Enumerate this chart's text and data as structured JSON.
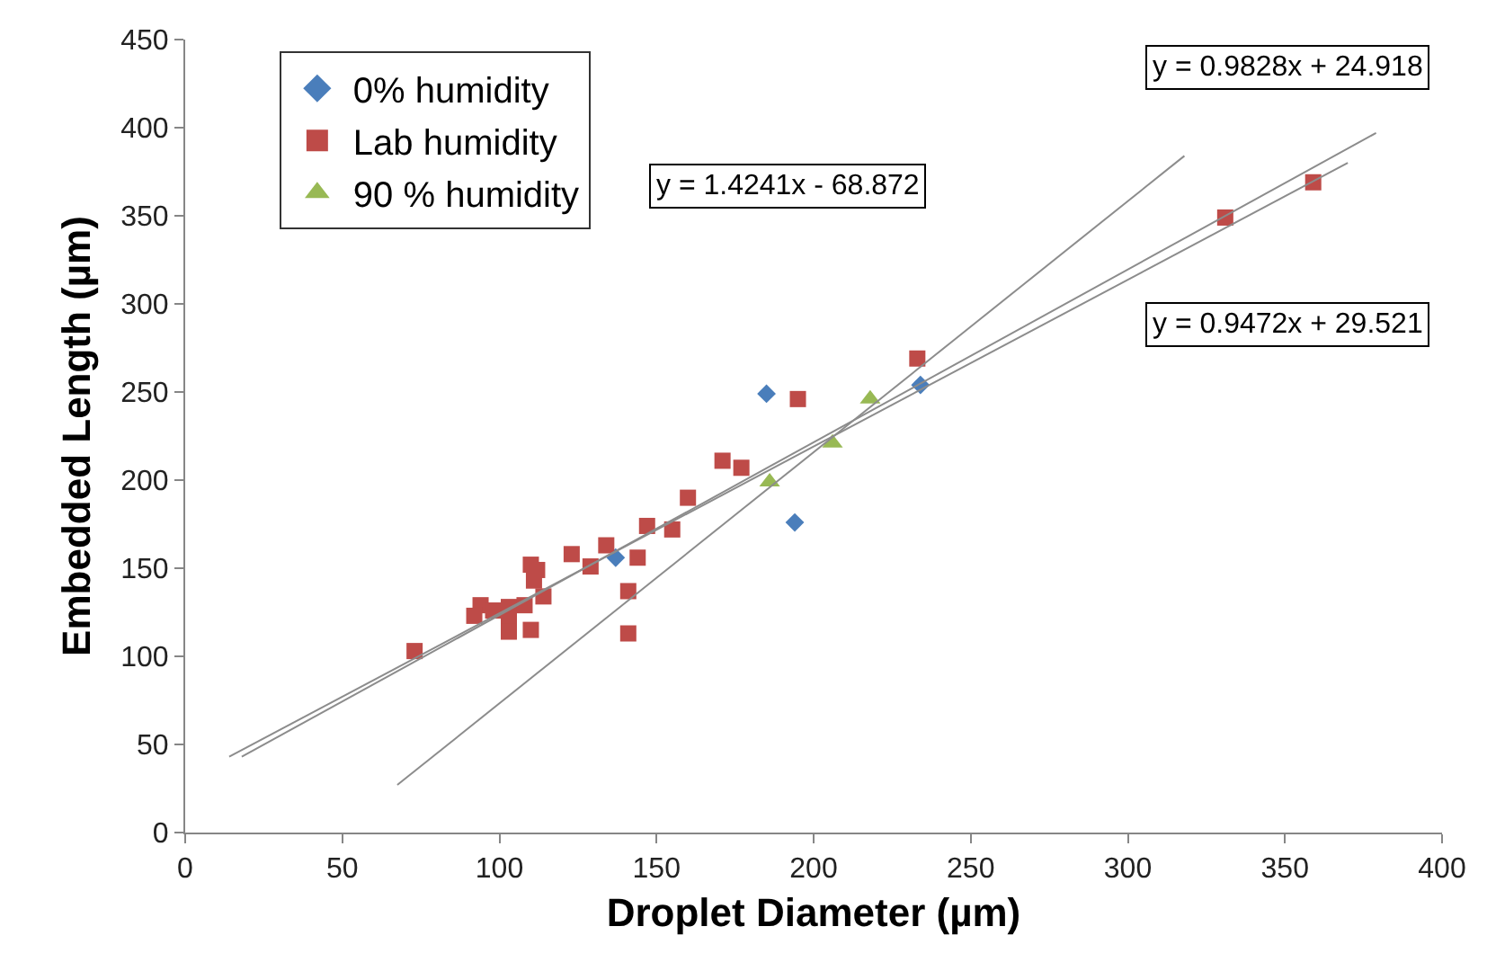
{
  "chart_data": {
    "type": "scatter",
    "xlabel": "Droplet Diameter (µm)",
    "ylabel": "Embedded Length (µm)",
    "xlim": [
      0,
      400
    ],
    "xticks": [
      0,
      50,
      100,
      150,
      200,
      250,
      300,
      350,
      400
    ],
    "ylim": [
      0,
      450
    ],
    "yticks": [
      0,
      50,
      100,
      150,
      200,
      250,
      300,
      350,
      400,
      450
    ],
    "legend": "top left",
    "series": [
      {
        "name": "0% humidity",
        "color": "#4a7ebb",
        "marker": "diamond",
        "x": [
          137,
          185,
          194,
          234
        ],
        "values": [
          156,
          249,
          176,
          254
        ]
      },
      {
        "name": "Lab humidity",
        "color": "#be4b48",
        "marker": "square",
        "x": [
          73,
          94,
          92,
          98,
          103,
          108,
          103,
          103,
          110,
          110,
          112,
          111,
          114,
          123,
          129,
          134,
          144,
          141,
          141,
          147,
          155,
          160,
          171,
          177,
          195,
          233,
          331,
          359
        ],
        "values": [
          103,
          129,
          123,
          126,
          128,
          129,
          121,
          114,
          115,
          152,
          149,
          143,
          134,
          158,
          151,
          163,
          156,
          137,
          113,
          174,
          172,
          190,
          211,
          207,
          246,
          269,
          349,
          369
        ]
      },
      {
        "name": "90 % humidity",
        "color": "#98b954",
        "marker": "triangle",
        "x": [
          186,
          206,
          218
        ],
        "values": [
          199,
          221,
          246
        ]
      },
      {
        "type": "line",
        "color": "#8c8c8c",
        "marker": "none",
        "x": [
          18,
          379
        ],
        "values": [
          43,
          397
        ]
      },
      {
        "type": "line",
        "color": "#8c8c8c",
        "marker": "none",
        "x": [
          14,
          370
        ],
        "values": [
          43,
          380
        ]
      },
      {
        "type": "line",
        "color": "#8c8c8c",
        "marker": "none",
        "x": [
          67.5,
          318
        ],
        "values": [
          27,
          384
        ]
      }
    ],
    "annotations": [
      "y = 0.9828x + 24.918",
      "y = 1.4241x - 68.872",
      "y = 0.9472x + 29.521"
    ]
  }
}
